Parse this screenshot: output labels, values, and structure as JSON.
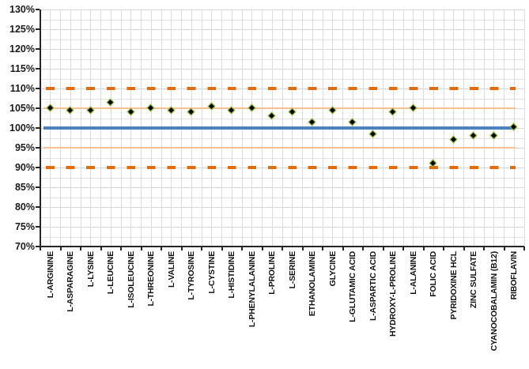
{
  "chart_data": {
    "type": "scatter",
    "title": "",
    "xlabel": "",
    "ylabel": "",
    "categories": [
      "L-ARGININE",
      "L-ASPARAGINE",
      "L-LYSINE",
      "L-LEUCINE",
      "L-ISOLEUCINE",
      "L-THREONINE",
      "L-VALINE",
      "L-TYROSINE",
      "L-CYSTINE",
      "L-HISTIDINE",
      "L-PHENYLALANINE",
      "L-PROLINE",
      "L-SERINE",
      "ETHANOLAMINE",
      "GLYCINE",
      "L-GLUTAMIC ACID",
      "L-ASPARTIC ACID",
      "HYDROXY-L-PROLINE",
      "L-ALANINE",
      "FOLIC ACID",
      "PYRIDOXINE HCL",
      "ZINC SULFATE",
      "CYANOCOBALAMIN (B12)",
      "RIBOFLAVIN"
    ],
    "series": [
      {
        "name": "percent-recovery",
        "values": [
          105,
          104.5,
          104.5,
          106.5,
          104,
          105,
          104.5,
          104,
          105.5,
          104.5,
          105,
          103,
          104,
          101.5,
          104.5,
          101.5,
          98.5,
          104,
          105,
          91,
          97,
          98,
          98,
          100.3
        ]
      }
    ],
    "ylim": [
      70,
      130
    ],
    "y_major_step": 5,
    "y_minor_step": 2.5,
    "y_tick_labels": [
      "70%",
      "75%",
      "80%",
      "85%",
      "90%",
      "95%",
      "100%",
      "105%",
      "110%",
      "115%",
      "120%",
      "125%",
      "130%"
    ],
    "grid": true,
    "legend": "none",
    "marker": {
      "shape": "diamond",
      "fill": "#000000",
      "outline": "#9ACD32"
    },
    "reference_lines": [
      {
        "name": "upper-action-limit",
        "value": 110,
        "style": "dashed",
        "color": "#E26B0A",
        "thickness": 3.5
      },
      {
        "name": "upper-warning-limit",
        "value": 105,
        "style": "solid",
        "color": "#FAC090",
        "thickness": 2
      },
      {
        "name": "target",
        "value": 100,
        "style": "solid",
        "color": "#4F81BD",
        "thickness": 3.5
      },
      {
        "name": "lower-warning-limit",
        "value": 95,
        "style": "solid",
        "color": "#FAC090",
        "thickness": 2
      },
      {
        "name": "lower-action-limit",
        "value": 90,
        "style": "dashed",
        "color": "#E26B0A",
        "thickness": 3.5
      }
    ]
  },
  "colors": {
    "background": "#FFFFFF",
    "grid_major": "#D6D6D6",
    "grid_minor": "#E2E2E2",
    "grid_vertical": "#DCDCDC",
    "axis": "#262626",
    "tick_label": "#1A1A1A"
  }
}
